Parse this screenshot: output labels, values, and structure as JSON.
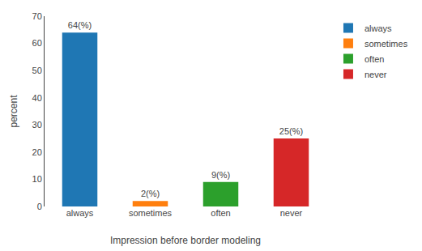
{
  "chart_data": {
    "type": "bar",
    "categories": [
      "always",
      "sometimes",
      "often",
      "never"
    ],
    "values": [
      64,
      2,
      9,
      25
    ],
    "value_labels": [
      "64(%)",
      "2(%)",
      "9(%)",
      "25(%)"
    ],
    "data_labels": true,
    "xlabel": "Impression before border modeling",
    "ylabel": "percent",
    "ylim": [
      0,
      70
    ],
    "yticks": [
      0,
      10,
      20,
      30,
      40,
      50,
      60,
      70
    ],
    "grid": false,
    "legend": "right"
  }
}
